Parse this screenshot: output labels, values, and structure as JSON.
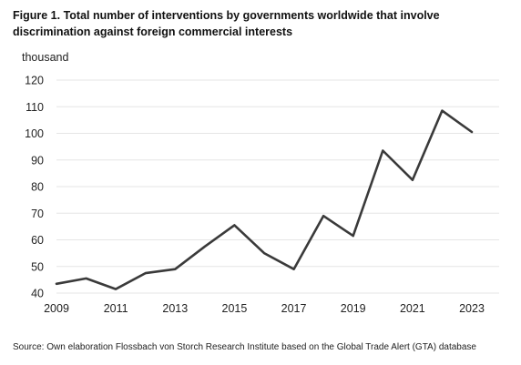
{
  "title": "Figure 1. Total number of interventions by governments worldwide that involve discrimination against foreign commercial interests",
  "source": "Source: Own elaboration Flossbach von Storch Research Institute based on the Global Trade Alert (GTA) database",
  "colors": {
    "line": "#3a3a3a",
    "grid": "#e6e6e6"
  },
  "chart_data": {
    "type": "line",
    "ylabel": "thousand",
    "ylim": [
      40,
      120
    ],
    "yticks": [
      40,
      50,
      60,
      70,
      80,
      90,
      100,
      110,
      120
    ],
    "xlim": [
      2009,
      2023
    ],
    "xticks": [
      2009,
      2011,
      2013,
      2015,
      2017,
      2019,
      2021,
      2023
    ],
    "grid": "horizontal",
    "x": [
      2009,
      2010,
      2011,
      2012,
      2013,
      2014,
      2015,
      2016,
      2017,
      2018,
      2019,
      2020,
      2021,
      2022,
      2023
    ],
    "values": [
      43.5,
      45.5,
      41.5,
      47.5,
      49,
      57.5,
      65.5,
      55,
      49,
      69,
      61.5,
      93.5,
      82.5,
      108.5,
      100.5
    ]
  }
}
